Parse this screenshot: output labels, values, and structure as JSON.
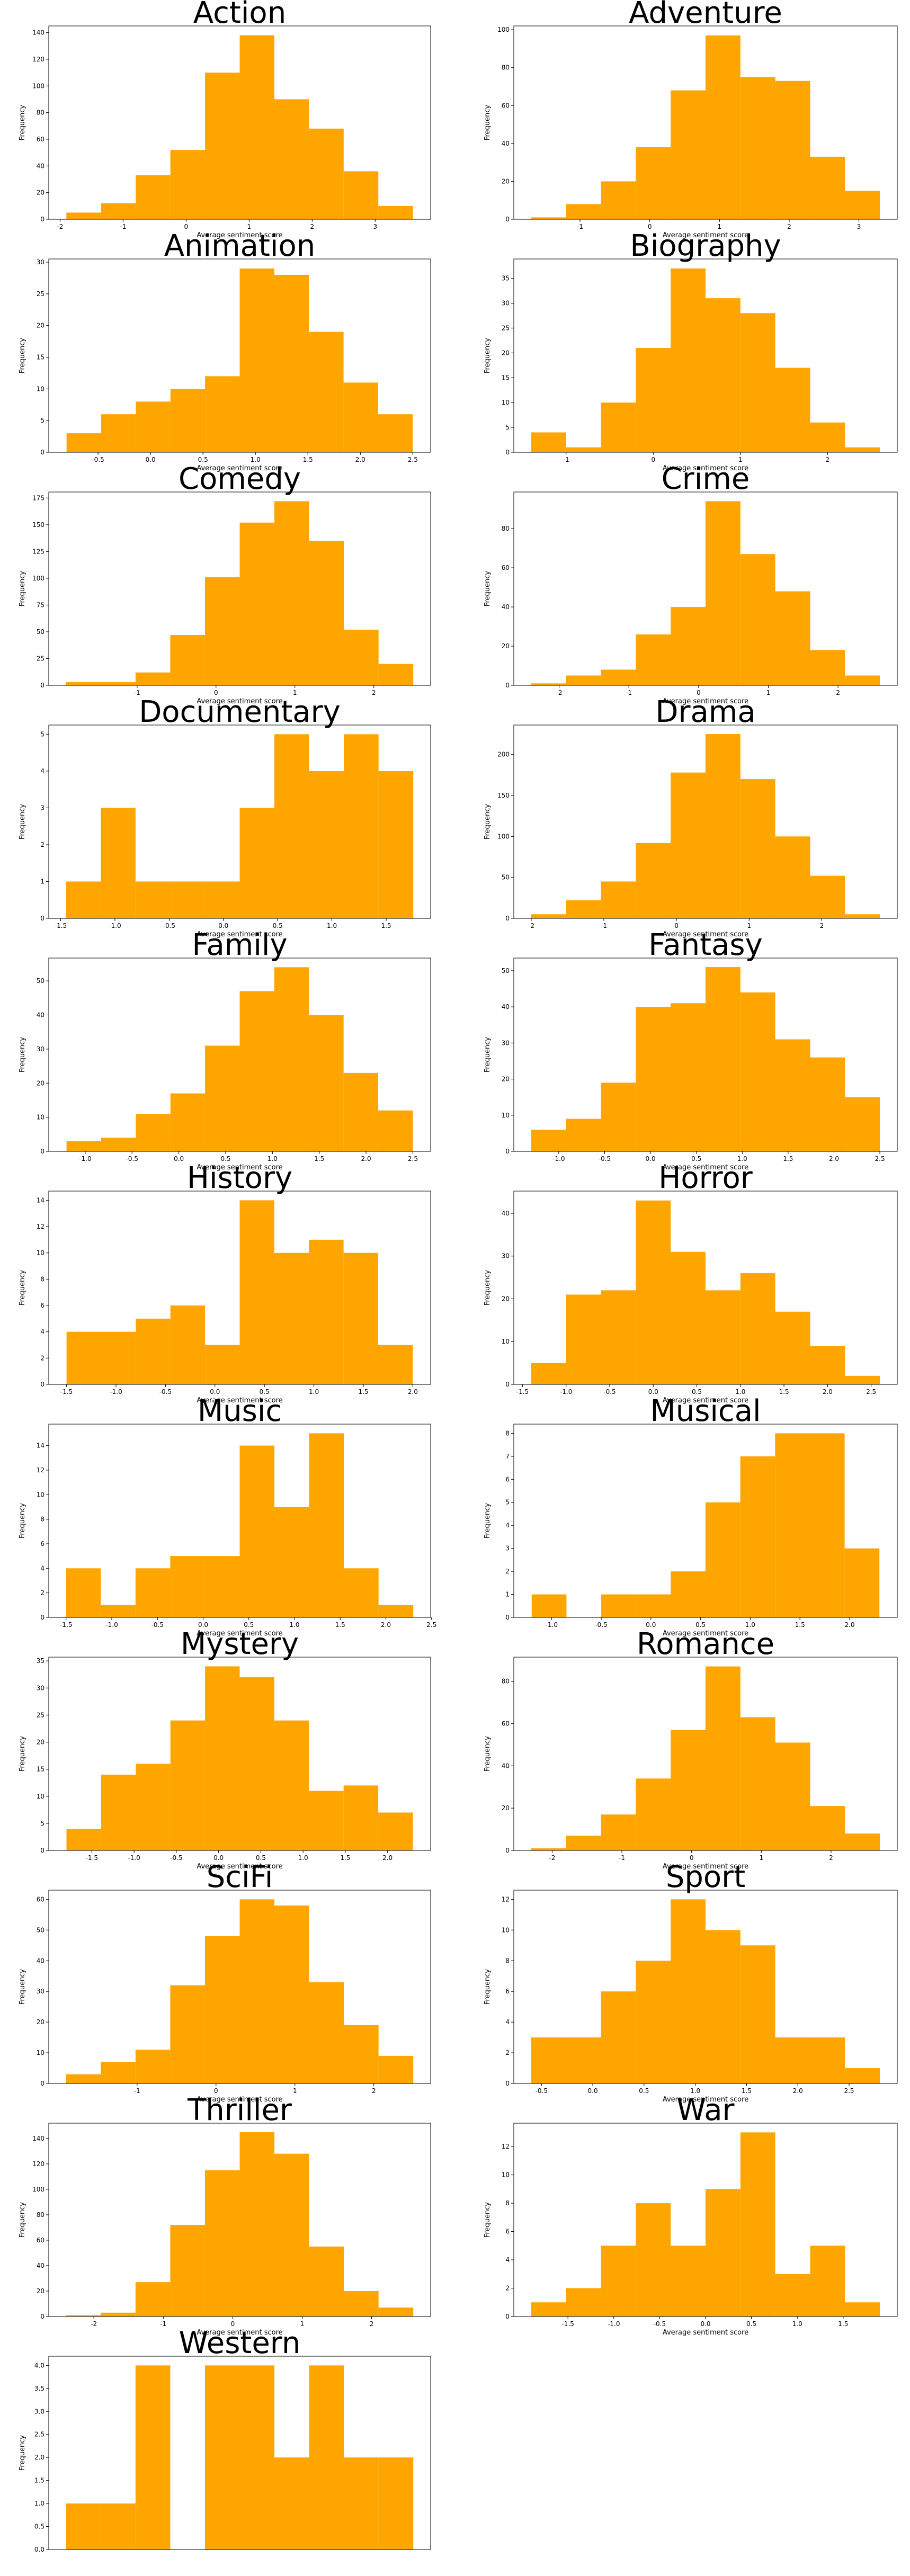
{
  "chart_data": [
    {
      "type": "histogram",
      "title": "Action",
      "xlabel": "Average sentiment score",
      "ylabel": "Frequency",
      "color": "#ffa500",
      "bins": [
        -1.9,
        -1.35,
        -0.8,
        -0.25,
        0.3,
        0.85,
        1.4,
        1.95,
        2.5,
        3.05,
        3.6
      ],
      "values": [
        5,
        12,
        33,
        52,
        110,
        138,
        90,
        68,
        36,
        10
      ],
      "xlim": [
        -2.18,
        3.88
      ],
      "ylim": [
        0,
        145
      ],
      "xticks": [
        -2,
        -1,
        0,
        1,
        2,
        3
      ],
      "yticks": [
        0,
        20,
        40,
        60,
        80,
        100,
        120,
        140
      ]
    },
    {
      "type": "histogram",
      "title": "Adventure",
      "xlabel": "Average sentiment score",
      "ylabel": "Frequency",
      "color": "#ffa500",
      "bins": [
        -1.7,
        -1.2,
        -0.7,
        -0.2,
        0.3,
        0.8,
        1.3,
        1.8,
        2.3,
        2.8,
        3.3
      ],
      "values": [
        1,
        8,
        20,
        38,
        68,
        97,
        75,
        73,
        33,
        15
      ],
      "xlim": [
        -1.95,
        3.55
      ],
      "ylim": [
        0,
        102
      ],
      "xticks": [
        -1,
        0,
        1,
        2,
        3
      ],
      "yticks": [
        0,
        20,
        40,
        60,
        80,
        100
      ]
    },
    {
      "type": "histogram",
      "title": "Animation",
      "xlabel": "Average sentiment score",
      "ylabel": "Frequency",
      "color": "#ffa500",
      "bins": [
        -0.8,
        -0.47,
        -0.14,
        0.19,
        0.52,
        0.85,
        1.18,
        1.51,
        1.84,
        2.17,
        2.5
      ],
      "values": [
        3,
        6,
        8,
        10,
        12,
        29,
        28,
        19,
        11,
        6
      ],
      "xlim": [
        -0.97,
        2.67
      ],
      "ylim": [
        0,
        30.5
      ],
      "xticks": [
        -0.5,
        {
          "value": 0,
          "label": "0.0"
        },
        0.5,
        {
          "value": 1,
          "label": "1.0"
        },
        1.5,
        {
          "value": 2,
          "label": "2.0"
        },
        2.5
      ],
      "yticks": [
        0,
        5,
        10,
        15,
        20,
        25,
        30
      ]
    },
    {
      "type": "histogram",
      "title": "Biography",
      "xlabel": "Average sentiment score",
      "ylabel": "Frequency",
      "color": "#ffa500",
      "bins": [
        -1.4,
        -1.0,
        -0.6,
        -0.2,
        0.2,
        0.6,
        1.0,
        1.4,
        1.8,
        2.2,
        2.6
      ],
      "values": [
        4,
        1,
        10,
        21,
        37,
        31,
        28,
        17,
        6,
        1
      ],
      "xlim": [
        -1.6,
        2.8
      ],
      "ylim": [
        0,
        38.9
      ],
      "xticks": [
        -1,
        0,
        1,
        2
      ],
      "yticks": [
        0,
        5,
        10,
        15,
        20,
        25,
        30,
        35
      ]
    },
    {
      "type": "histogram",
      "title": "Comedy",
      "xlabel": "Average sentiment score",
      "ylabel": "Frequency",
      "color": "#ffa500",
      "bins": [
        -1.9,
        -1.46,
        -1.02,
        -0.58,
        -0.14,
        0.3,
        0.74,
        1.18,
        1.62,
        2.06,
        2.5
      ],
      "values": [
        3,
        3,
        12,
        47,
        101,
        152,
        172,
        135,
        52,
        20
      ],
      "xlim": [
        -2.12,
        2.72
      ],
      "ylim": [
        0,
        180.6
      ],
      "xticks": [
        -1,
        0,
        1,
        2
      ],
      "yticks": [
        0,
        25,
        50,
        75,
        100,
        125,
        150,
        175
      ]
    },
    {
      "type": "histogram",
      "title": "Crime",
      "xlabel": "Average sentiment score",
      "ylabel": "Frequency",
      "color": "#ffa500",
      "bins": [
        -2.4,
        -1.9,
        -1.4,
        -0.9,
        -0.4,
        0.1,
        0.6,
        1.1,
        1.6,
        2.1,
        2.6
      ],
      "values": [
        1,
        5,
        8,
        26,
        40,
        94,
        67,
        48,
        18,
        5
      ],
      "xlim": [
        -2.65,
        2.85
      ],
      "ylim": [
        0,
        98.7
      ],
      "xticks": [
        -2,
        -1,
        0,
        1,
        2
      ],
      "yticks": [
        0,
        20,
        40,
        60,
        80
      ]
    },
    {
      "type": "histogram",
      "title": "Documentary",
      "xlabel": "Average sentiment score",
      "ylabel": "Frequency",
      "color": "#ffa500",
      "bins": [
        -1.45,
        -1.13,
        -0.81,
        -0.49,
        -0.17,
        0.15,
        0.47,
        0.79,
        1.11,
        1.43,
        1.75
      ],
      "values": [
        1,
        3,
        1,
        1,
        1,
        3,
        5,
        4,
        5,
        4
      ],
      "xlim": [
        -1.61,
        1.91
      ],
      "ylim": [
        0,
        5.25
      ],
      "xticks": [
        -1.5,
        {
          "value": -1,
          "label": "-1.0"
        },
        -0.5,
        {
          "value": 0,
          "label": "0.0"
        },
        0.5,
        {
          "value": 1,
          "label": "1.0"
        },
        1.5
      ],
      "yticks": [
        0,
        1,
        2,
        3,
        4,
        5
      ]
    },
    {
      "type": "histogram",
      "title": "Drama",
      "xlabel": "Average sentiment score",
      "ylabel": "Frequency",
      "color": "#ffa500",
      "bins": [
        -2,
        -1.52,
        -1.04,
        -0.56,
        -0.08,
        0.4,
        0.88,
        1.36,
        1.84,
        2.32,
        2.8
      ],
      "values": [
        5,
        22,
        45,
        92,
        178,
        225,
        170,
        100,
        52,
        5
      ],
      "xlim": [
        -2.24,
        3.04
      ],
      "ylim": [
        0,
        236
      ],
      "xticks": [
        -2,
        -1,
        0,
        1,
        2
      ],
      "yticks": [
        0,
        50,
        100,
        150,
        200
      ]
    },
    {
      "type": "histogram",
      "title": "Family",
      "xlabel": "Average sentiment score",
      "ylabel": "Frequency",
      "color": "#ffa500",
      "bins": [
        -1.2,
        -0.83,
        -0.46,
        -0.09,
        0.28,
        0.65,
        1.02,
        1.39,
        1.76,
        2.13,
        2.5
      ],
      "values": [
        3,
        4,
        11,
        17,
        31,
        47,
        54,
        40,
        23,
        12
      ],
      "xlim": [
        -1.39,
        2.69
      ],
      "ylim": [
        0,
        56.7
      ],
      "xticks": [
        {
          "value": -1,
          "label": "-1.0"
        },
        -0.5,
        {
          "value": 0,
          "label": "0.0"
        },
        0.5,
        {
          "value": 1,
          "label": "1.0"
        },
        1.5,
        {
          "value": 2,
          "label": "2.0"
        },
        2.5
      ],
      "yticks": [
        0,
        10,
        20,
        30,
        40,
        50
      ]
    },
    {
      "type": "histogram",
      "title": "Fantasy",
      "xlabel": "Average sentiment score",
      "ylabel": "Frequency",
      "color": "#ffa500",
      "bins": [
        -1.3,
        -0.92,
        -0.54,
        -0.16,
        0.22,
        0.6,
        0.98,
        1.36,
        1.74,
        2.12,
        2.5
      ],
      "values": [
        6,
        9,
        19,
        40,
        41,
        51,
        44,
        31,
        26,
        15
      ],
      "xlim": [
        -1.49,
        2.69
      ],
      "ylim": [
        0,
        53.5
      ],
      "xticks": [
        {
          "value": -1,
          "label": "-1.0"
        },
        -0.5,
        {
          "value": 0,
          "label": "0.0"
        },
        0.5,
        {
          "value": 1,
          "label": "1.0"
        },
        1.5,
        {
          "value": 2,
          "label": "2.0"
        },
        2.5
      ],
      "yticks": [
        0,
        10,
        20,
        30,
        40,
        50
      ]
    },
    {
      "type": "histogram",
      "title": "History",
      "xlabel": "Average sentiment score",
      "ylabel": "Frequency",
      "color": "#ffa500",
      "bins": [
        -1.5,
        -1.15,
        -0.8,
        -0.45,
        -0.1,
        0.25,
        0.6,
        0.95,
        1.3,
        1.65,
        2.0
      ],
      "values": [
        4,
        4,
        5,
        6,
        3,
        14,
        10,
        11,
        10,
        3
      ],
      "xlim": [
        -1.68,
        2.18
      ],
      "ylim": [
        0,
        14.7
      ],
      "xticks": [
        -1.5,
        {
          "value": -1,
          "label": "-1.0"
        },
        -0.5,
        {
          "value": 0,
          "label": "0.0"
        },
        0.5,
        {
          "value": 1,
          "label": "1.0"
        },
        1.5,
        {
          "value": 2,
          "label": "2.0"
        }
      ],
      "yticks": [
        0,
        2,
        4,
        6,
        8,
        10,
        12,
        14
      ]
    },
    {
      "type": "histogram",
      "title": "Horror",
      "xlabel": "Average sentiment score",
      "ylabel": "Frequency",
      "color": "#ffa500",
      "bins": [
        -1.4,
        -1.0,
        -0.6,
        -0.2,
        0.2,
        0.6,
        1.0,
        1.4,
        1.8,
        2.2,
        2.6
      ],
      "values": [
        5,
        21,
        22,
        43,
        31,
        22,
        26,
        17,
        9,
        2
      ],
      "xlim": [
        -1.6,
        2.8
      ],
      "ylim": [
        0,
        45.2
      ],
      "xticks": [
        -1.5,
        {
          "value": -1,
          "label": "-1.0"
        },
        -0.5,
        {
          "value": 0,
          "label": "0.0"
        },
        0.5,
        {
          "value": 1,
          "label": "1.0"
        },
        1.5,
        {
          "value": 2,
          "label": "2.0"
        },
        2.5
      ],
      "yticks": [
        0,
        10,
        20,
        30,
        40
      ]
    },
    {
      "type": "histogram",
      "title": "Music",
      "xlabel": "Average sentiment score",
      "ylabel": "Frequency",
      "color": "#ffa500",
      "bins": [
        -1.5,
        -1.12,
        -0.74,
        -0.36,
        0.02,
        0.4,
        0.78,
        1.16,
        1.54,
        1.92,
        2.3
      ],
      "values": [
        4,
        1,
        4,
        5,
        5,
        14,
        9,
        15,
        4,
        1
      ],
      "xlim": [
        -1.69,
        2.49
      ],
      "ylim": [
        0,
        15.75
      ],
      "xticks": [
        -1.5,
        {
          "value": -1,
          "label": "-1.0"
        },
        -0.5,
        {
          "value": 0,
          "label": "0.0"
        },
        0.5,
        {
          "value": 1,
          "label": "1.0"
        },
        1.5,
        {
          "value": 2,
          "label": "2.0"
        },
        2.5
      ],
      "yticks": [
        0,
        2,
        4,
        6,
        8,
        10,
        12,
        14
      ]
    },
    {
      "type": "histogram",
      "title": "Musical",
      "xlabel": "Average sentiment score",
      "ylabel": "Frequency",
      "color": "#ffa500",
      "bins": [
        -1.2,
        -0.85,
        -0.5,
        -0.15,
        0.2,
        0.55,
        0.9,
        1.25,
        1.6,
        1.95,
        2.3
      ],
      "values": [
        1,
        0,
        1,
        1,
        2,
        5,
        7,
        8,
        8,
        3
      ],
      "xlim": [
        -1.38,
        2.48
      ],
      "ylim": [
        0,
        8.4
      ],
      "xticks": [
        {
          "value": -1,
          "label": "-1.0"
        },
        -0.5,
        {
          "value": 0,
          "label": "0.0"
        },
        0.5,
        {
          "value": 1,
          "label": "1.0"
        },
        1.5,
        {
          "value": 2,
          "label": "2.0"
        }
      ],
      "yticks": [
        0,
        1,
        2,
        3,
        4,
        5,
        6,
        7,
        8
      ]
    },
    {
      "type": "histogram",
      "title": "Mystery",
      "xlabel": "Average sentiment score",
      "ylabel": "Frequency",
      "color": "#ffa500",
      "bins": [
        -1.8,
        -1.39,
        -0.98,
        -0.57,
        -0.16,
        0.25,
        0.66,
        1.07,
        1.48,
        1.89,
        2.3
      ],
      "values": [
        4,
        14,
        16,
        24,
        34,
        32,
        24,
        11,
        12,
        7
      ],
      "xlim": [
        -2.01,
        2.51
      ],
      "ylim": [
        0,
        35.7
      ],
      "xticks": [
        -1.5,
        {
          "value": -1,
          "label": "-1.0"
        },
        -0.5,
        {
          "value": 0,
          "label": "0.0"
        },
        0.5,
        {
          "value": 1,
          "label": "1.0"
        },
        1.5,
        {
          "value": 2,
          "label": "2.0"
        }
      ],
      "yticks": [
        0,
        5,
        10,
        15,
        20,
        25,
        30,
        35
      ]
    },
    {
      "type": "histogram",
      "title": "Romance",
      "xlabel": "Average sentiment score",
      "ylabel": "Frequency",
      "color": "#ffa500",
      "bins": [
        -2.3,
        -1.8,
        -1.3,
        -0.8,
        -0.3,
        0.2,
        0.7,
        1.2,
        1.7,
        2.2,
        2.7
      ],
      "values": [
        1,
        7,
        17,
        34,
        57,
        87,
        63,
        51,
        21,
        8
      ],
      "xlim": [
        -2.55,
        2.95
      ],
      "ylim": [
        0,
        91.4
      ],
      "xticks": [
        -2,
        -1,
        0,
        1,
        2
      ],
      "yticks": [
        0,
        20,
        40,
        60,
        80
      ]
    },
    {
      "type": "histogram",
      "title": "SciFi",
      "xlabel": "Average sentiment score",
      "ylabel": "Frequency",
      "color": "#ffa500",
      "bins": [
        -1.9,
        -1.46,
        -1.02,
        -0.58,
        -0.14,
        0.3,
        0.74,
        1.18,
        1.62,
        2.06,
        2.5
      ],
      "values": [
        3,
        7,
        11,
        32,
        48,
        60,
        58,
        33,
        19,
        9
      ],
      "xlim": [
        -2.12,
        2.72
      ],
      "ylim": [
        0,
        63
      ],
      "xticks": [
        -1,
        0,
        1,
        2
      ],
      "yticks": [
        0,
        10,
        20,
        30,
        40,
        50,
        60
      ]
    },
    {
      "type": "histogram",
      "title": "Sport",
      "xlabel": "Average sentiment score",
      "ylabel": "Frequency",
      "color": "#ffa500",
      "bins": [
        -0.6,
        -0.26,
        0.08,
        0.42,
        0.76,
        1.1,
        1.44,
        1.78,
        2.12,
        2.46,
        2.8
      ],
      "values": [
        3,
        3,
        6,
        8,
        12,
        10,
        9,
        3,
        3,
        1
      ],
      "xlim": [
        -0.77,
        2.97
      ],
      "ylim": [
        0,
        12.6
      ],
      "xticks": [
        -0.5,
        {
          "value": 0,
          "label": "0.0"
        },
        0.5,
        {
          "value": 1,
          "label": "1.0"
        },
        1.5,
        {
          "value": 2,
          "label": "2.0"
        },
        2.5
      ],
      "yticks": [
        0,
        2,
        4,
        6,
        8,
        10,
        12
      ]
    },
    {
      "type": "histogram",
      "title": "Thriller",
      "xlabel": "Average sentiment score",
      "ylabel": "Frequency",
      "color": "#ffa500",
      "bins": [
        -2.4,
        -1.9,
        -1.4,
        -0.9,
        -0.4,
        0.1,
        0.6,
        1.1,
        1.6,
        2.1,
        2.6
      ],
      "values": [
        1,
        3,
        27,
        72,
        115,
        145,
        128,
        55,
        20,
        7
      ],
      "xlim": [
        -2.65,
        2.85
      ],
      "ylim": [
        0,
        152
      ],
      "xticks": [
        -2,
        -1,
        0,
        1,
        2
      ],
      "yticks": [
        0,
        20,
        40,
        60,
        80,
        100,
        120,
        140
      ]
    },
    {
      "type": "histogram",
      "title": "War",
      "xlabel": "Average sentiment score",
      "ylabel": "Frequency",
      "color": "#ffa500",
      "bins": [
        -1.9,
        -1.52,
        -1.14,
        -0.76,
        -0.38,
        0,
        0.38,
        0.76,
        1.14,
        1.52,
        1.9
      ],
      "values": [
        1,
        2,
        5,
        8,
        5,
        9,
        13,
        3,
        5,
        1
      ],
      "xlim": [
        -2.09,
        2.09
      ],
      "ylim": [
        0,
        13.65
      ],
      "xticks": [
        -1.5,
        {
          "value": -1,
          "label": "-1.0"
        },
        -0.5,
        {
          "value": 0,
          "label": "0.0"
        },
        0.5,
        {
          "value": 1,
          "label": "1.0"
        },
        1.5
      ],
      "yticks": [
        0,
        2,
        4,
        6,
        8,
        10,
        12
      ]
    },
    {
      "type": "histogram",
      "title": "Western",
      "ylabel": "Frequency",
      "color": "#ffa500",
      "bins": [
        0,
        0.3,
        0.6,
        0.9,
        1.2,
        1.5,
        1.8,
        2.1,
        2.4,
        2.7,
        3.0
      ],
      "values": [
        1,
        1,
        4,
        0,
        4,
        4,
        2,
        4,
        2,
        2
      ],
      "xlim": [
        -0.15,
        3.15
      ],
      "ylim": [
        0,
        4.2
      ],
      "xticks": [],
      "yticks": [
        {
          "value": 0,
          "label": "0.0"
        },
        0.5,
        {
          "value": 1,
          "label": "1.0"
        },
        1.5,
        {
          "value": 2,
          "label": "2.0"
        },
        2.5,
        {
          "value": 3,
          "label": "3.0"
        },
        3.5,
        {
          "value": 4,
          "label": "4.0"
        }
      ]
    }
  ]
}
